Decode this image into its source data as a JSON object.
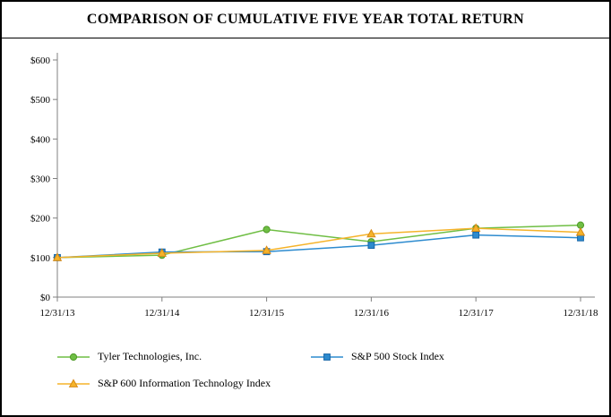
{
  "title": "COMPARISON OF CUMULATIVE FIVE YEAR TOTAL RETURN",
  "chart_data": {
    "type": "line",
    "title": "COMPARISON OF CUMULATIVE FIVE YEAR TOTAL RETURN",
    "categories": [
      "12/31/13",
      "12/31/14",
      "12/31/15",
      "12/31/16",
      "12/31/17",
      "12/31/18"
    ],
    "series": [
      {
        "name": "Tyler Technologies, Inc.",
        "marker": "circle",
        "color": "#6fbe44",
        "edge": "#4f9a27",
        "values": [
          100,
          106,
          171,
          140,
          174,
          182
        ]
      },
      {
        "name": "S&P 500 Stock Index",
        "marker": "square",
        "color": "#2d8bcf",
        "edge": "#1565a8",
        "values": [
          100,
          114,
          115,
          131,
          157,
          150
        ]
      },
      {
        "name": "S&P 600 Information Technology Index",
        "marker": "triangle",
        "color": "#f5b32a",
        "edge": "#d88a16",
        "values": [
          100,
          111,
          118,
          160,
          174,
          164
        ]
      }
    ],
    "xlabel": "",
    "ylabel": "",
    "ylim": [
      0,
      600
    ],
    "ytick_step": 100,
    "ytick_labels": [
      "$0",
      "$100",
      "$200",
      "$300",
      "$400",
      "$500",
      "$600"
    ],
    "grid": false,
    "legend_position": "bottom",
    "axis_color": "#808080"
  }
}
